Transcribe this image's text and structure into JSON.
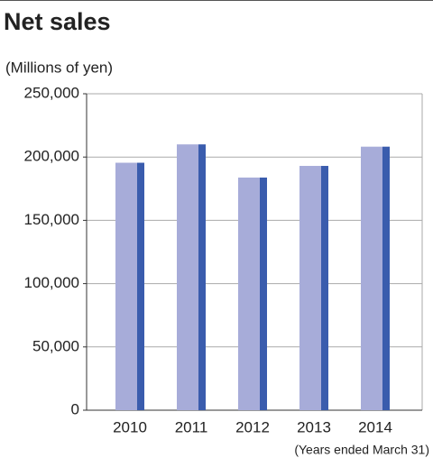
{
  "chart_data": {
    "type": "bar",
    "title": "Net sales",
    "y_label": "(Millions of yen)",
    "note": "(Years ended March 31)",
    "categories": [
      "2010",
      "2011",
      "2012",
      "2013",
      "2014"
    ],
    "values": [
      195500,
      210000,
      183800,
      193000,
      208200
    ],
    "color": "#a7acd9",
    "side_color": "#3a5cad",
    "ylim": [
      0,
      250000
    ],
    "yticks": [
      0,
      {
        "value": 50000,
        "label": "50,000"
      },
      {
        "value": 100000,
        "label": "100,000"
      },
      {
        "value": 150000,
        "label": "150,000"
      },
      {
        "value": 200000,
        "label": "200,000"
      },
      {
        "value": 250000,
        "label": "250,000"
      }
    ],
    "grid": true
  }
}
